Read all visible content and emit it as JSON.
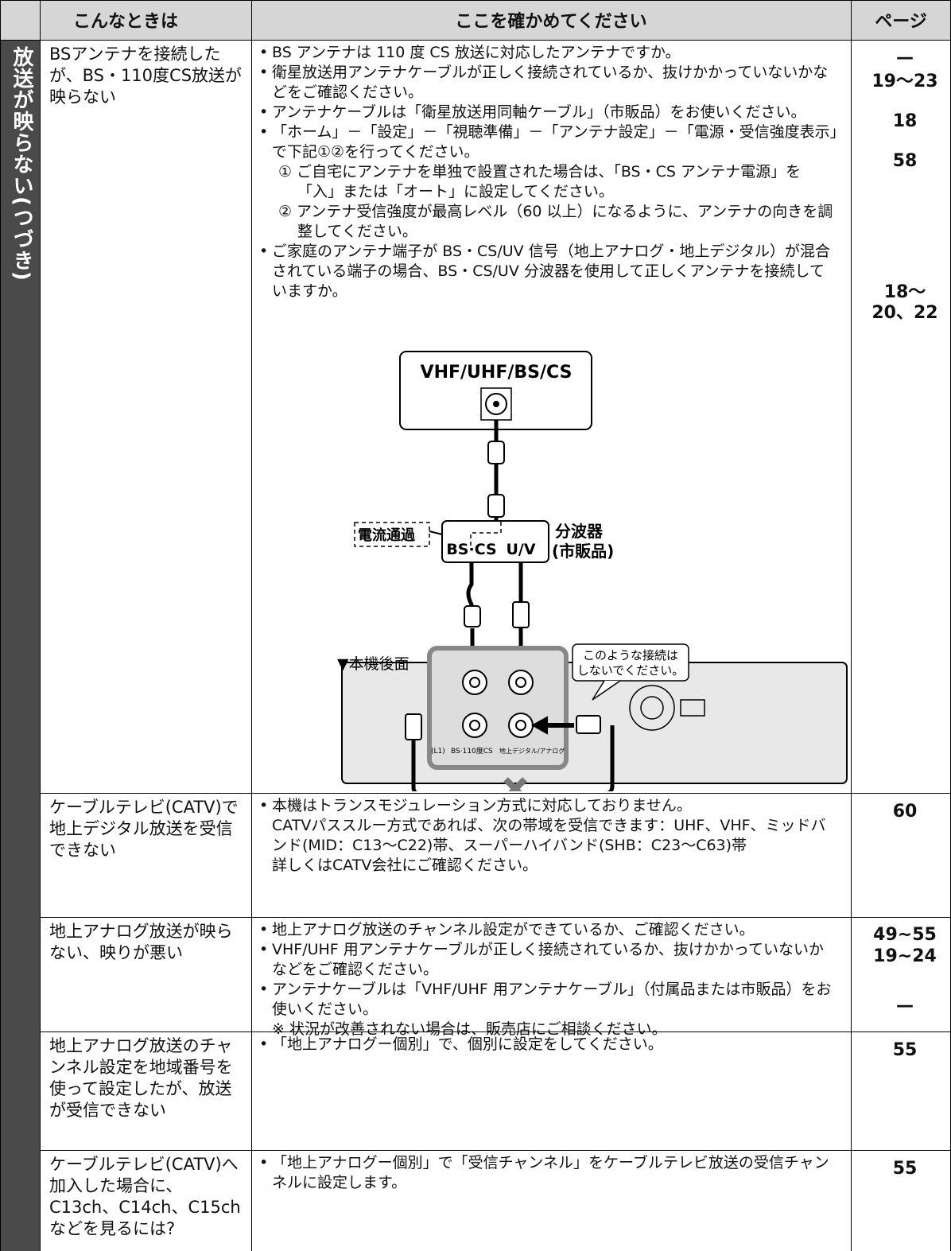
{
  "header": {
    "col1": "こんなときは",
    "col2": "ここを確かめてください",
    "col3": "ページ"
  },
  "side_label": "放送が映らない(つづき)",
  "rows": [
    {
      "problem": "BSアンテナを接続したが、BS・110度CS放送が映らない",
      "checks": [
        {
          "lines": [
            "BS アンテナは 110 度 CS 放送に対応したアンテナですか。"
          ]
        },
        {
          "lines": [
            "衛星放送用アンテナケーブルが正しく接続されているか、抜けかかっていないかなどをご確認ください。"
          ]
        },
        {
          "lines": [
            "アンテナケーブルは「衛星放送用同軸ケーブル」（市販品）をお使いください。"
          ]
        },
        {
          "lines": [
            "「ホーム」－「設定」－「視聴準備」－「アンテナ設定」－「電源・受信強度表示」で下記①②を行ってください。"
          ],
          "sub": [
            "① ご自宅にアンテナを単独で設置された場合は、「BS・CS アンテナ電源」を「入」または「オート」に設定してください。",
            "② アンテナ受信強度が最高レベル（60 以上）になるように、アンテナの向きを調整してください。"
          ]
        },
        {
          "lines": [
            "ご家庭のアンテナ端子が BS・CS/UV 信号（地上アナログ・地上デジタル）が混合されている端子の場合、BS・CS/UV 分波器を使用して正しくアンテナを接続していますか。"
          ]
        }
      ],
      "pages": [
        "—",
        "19～23",
        "18",
        "58",
        "18～20、22"
      ]
    },
    {
      "problem": "ケーブルテレビ(CATV)で地上デジタル放送を受信できない",
      "checks": [
        {
          "lines": [
            "本機はトランスモジュレーション方式に対応しておりません。",
            "CATVパススルー方式であれば、次の帯域を受信できます：UHF、VHF、ミッドバンド(MID：C13～C22)帯、スーパーハイバンド(SHB：C23～C63)帯",
            "詳しくはCATV会社にご確認ください。"
          ]
        }
      ],
      "pages": [
        "60"
      ]
    },
    {
      "problem": "地上アナログ放送が映らない、映りが悪い",
      "checks": [
        {
          "lines": [
            "地上アナログ放送のチャンネル設定ができているか、ご確認ください。"
          ]
        },
        {
          "lines": [
            "VHF/UHF 用アンテナケーブルが正しく接続されているか、抜けかかっていないかなどをご確認ください。"
          ]
        },
        {
          "lines": [
            "アンテナケーブルは「VHF/UHF 用アンテナケーブル」（付属品または市販品）をお使いください。",
            "※ 状況が改善されない場合は、販売店にご相談ください。"
          ]
        }
      ],
      "pages": [
        "49~55",
        "19~24",
        "—"
      ]
    },
    {
      "problem": "地上アナログ放送のチャンネル設定を地域番号を使って設定したが、放送が受信できない",
      "checks": [
        {
          "lines": [
            "「地上アナログー個別」で、個別に設定をしてください。"
          ]
        }
      ],
      "pages": [
        "55"
      ]
    },
    {
      "problem": "ケーブルテレビ(CATV)へ加入した場合に、C13ch、C14ch、C15chなどを見るには?",
      "checks": [
        {
          "lines": [
            "「地上アナログー個別」で「受信チャンネル」をケーブルテレビ放送の受信チャンネルに設定します。"
          ]
        }
      ],
      "pages": [
        "55"
      ]
    }
  ],
  "diagram": {
    "source_label": "VHF/UHF/BS/CS",
    "current_label": "電流通過",
    "port_labels": [
      "BS·CS",
      "U/V"
    ],
    "splitter_label": "分波器",
    "splitter_note": "(市販品)",
    "rear_label": "▼本機後面",
    "warning_lines": [
      "このような接続は",
      "しないでください。"
    ],
    "panel_labels": [
      "(L1)",
      "BS·110度CS",
      "地上デジタル/アナログ"
    ]
  }
}
